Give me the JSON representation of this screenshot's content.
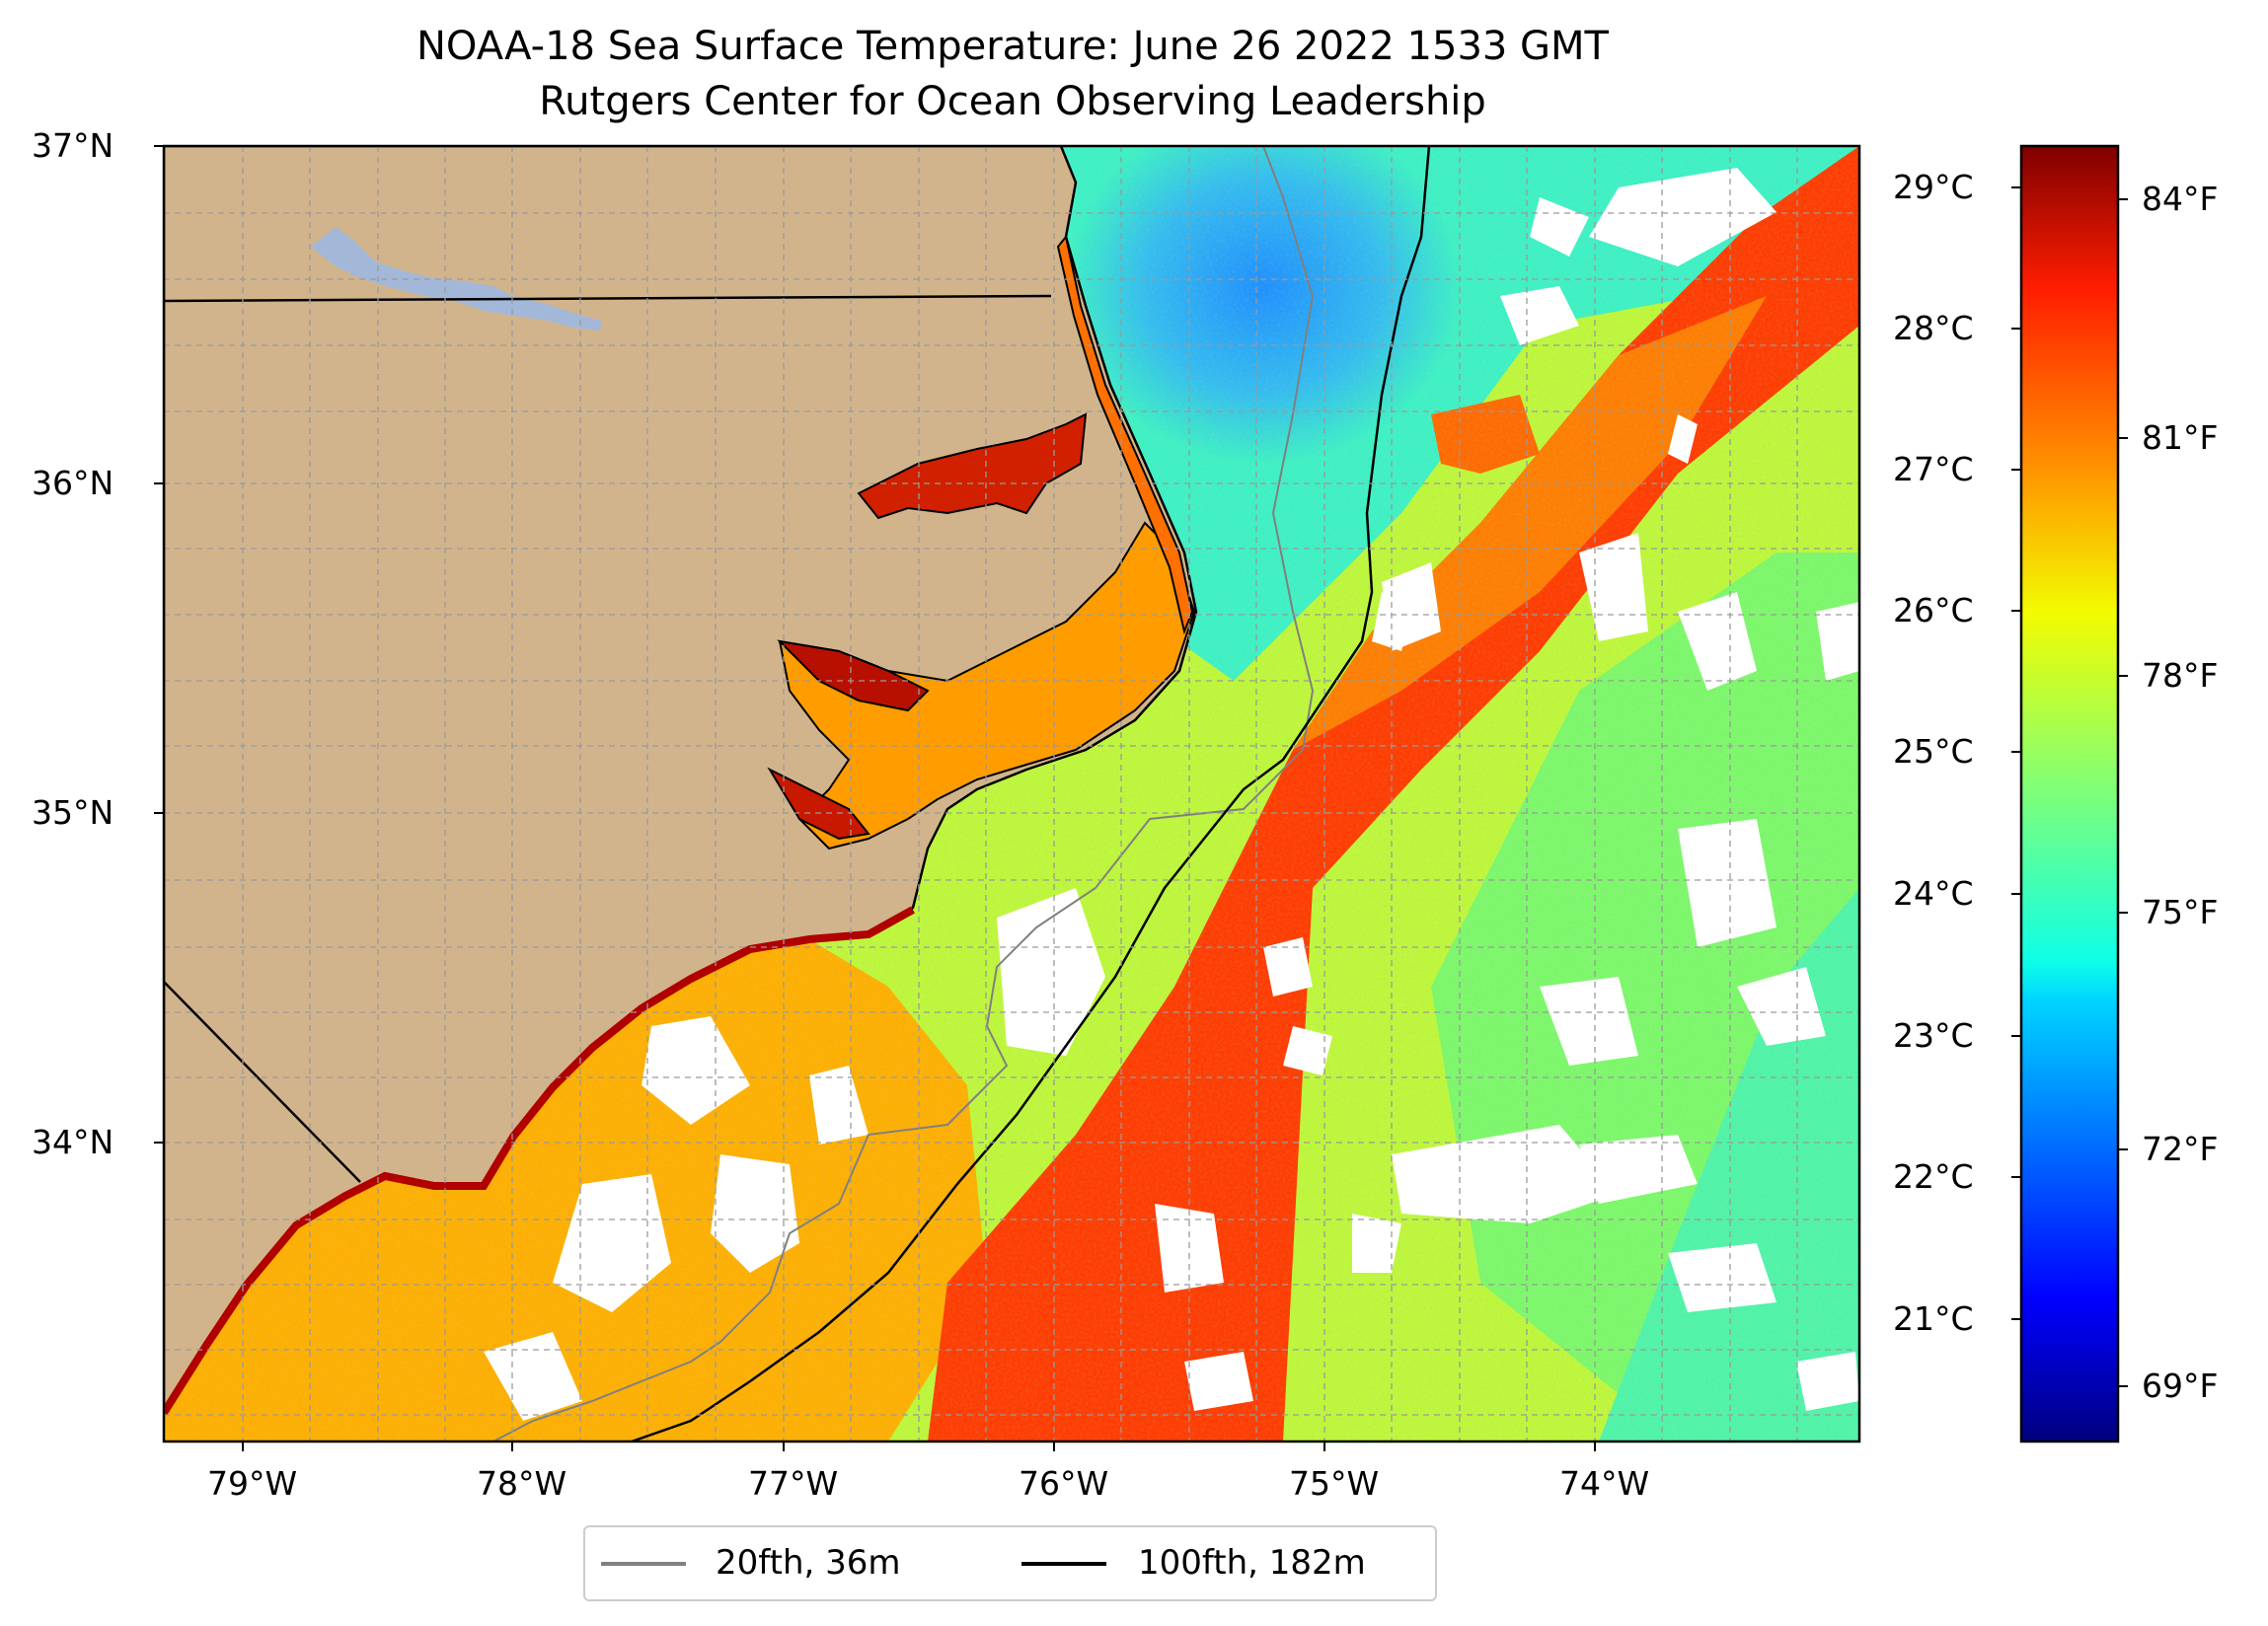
{
  "title": "NOAA-18 Sea Surface Temperature: June 26 2022 1533 GMT",
  "subtitle": "Rutgers Center for Ocean Observing Leadership",
  "map": {
    "lon_range": [
      -79.3,
      -73.15
    ],
    "lat_range": [
      33.1,
      37.0
    ],
    "lat_labels": [
      "37°N",
      "36°N",
      "35°N",
      "34°N"
    ],
    "lon_labels": [
      "79°W",
      "78°W",
      "77°W",
      "76°W",
      "75°W",
      "74°W"
    ],
    "land_color": "#d2b48c",
    "lake_color": "#a3b8d8",
    "cloud_mask_color": "#ffffff",
    "colormap": "jet",
    "gridlines": true
  },
  "colorbar": {
    "celsius_labels": [
      "29°C",
      "28°C",
      "27°C",
      "26°C",
      "25°C",
      "24°C",
      "23°C",
      "22°C",
      "21°C"
    ],
    "fahrenheit_labels": [
      "84°F",
      "81°F",
      "78°F",
      "75°F",
      "72°F",
      "69°F"
    ],
    "range_c": [
      20.1,
      29.3
    ]
  },
  "legend": {
    "items": [
      {
        "label": "20fth, 36m",
        "color": "#808080"
      },
      {
        "label": "100fth, 182m",
        "color": "#000000"
      }
    ]
  }
}
